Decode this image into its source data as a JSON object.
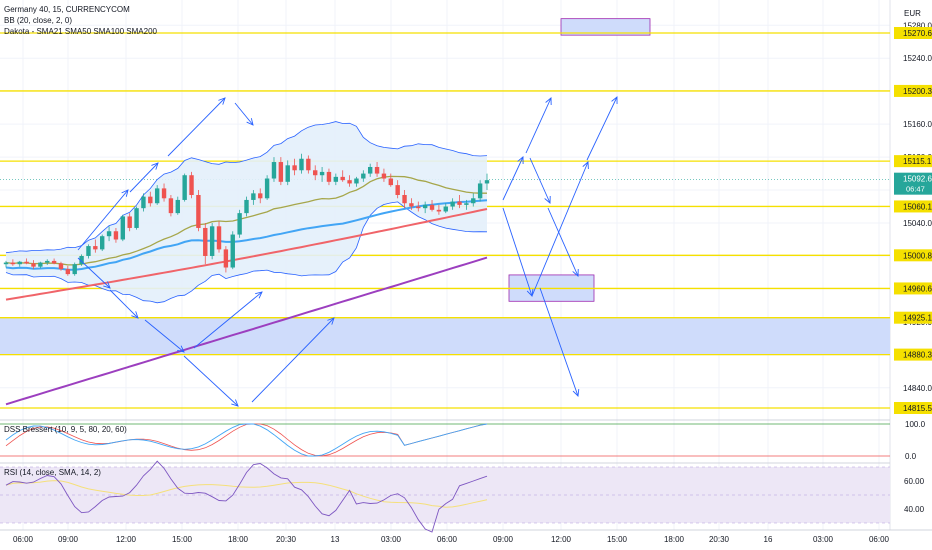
{
  "header": {
    "symbol_line": "Germany 40, 15, CURRENCYCOM",
    "bb_line": "BB (20, close, 2, 0)",
    "sma_line": "Dakota - SMA21 SMA50 SMA100 SMA200",
    "currency": "EUR"
  },
  "colors": {
    "candle_up": "#26a69a",
    "candle_down": "#ef5350",
    "level_line": "#f5e000",
    "zone_fill": "#cfdcfb",
    "zone_border": "#9c27b0",
    "arrow": "#2962ff",
    "sma21": "#a6a64a",
    "sma50": "#42a5f5",
    "sma100": "#f06469",
    "sma200": "#9c3fbf",
    "bb": "#2962ff",
    "bb_fill": "#e3f0fb",
    "price_tag": "#26a69a",
    "dss_blue": "#42a5f5",
    "dss_red": "#ef5350",
    "rsi_line": "#7e57c2",
    "rsi_ma": "#f5e07a",
    "rsi_band": "#ede7f6"
  },
  "chart_data": {
    "type": "candlestick",
    "y_range": [
      14800,
      15290
    ],
    "y_ticks": [
      "15280.0",
      "15240.0",
      "15200.0",
      "15160.0",
      "15120.0",
      "15080.0",
      "15040.0",
      "15000.0",
      "14960.0",
      "14920.0",
      "14880.0",
      "14840.0"
    ],
    "level_lines": [
      {
        "value": 15270.6,
        "label": "15270.6"
      },
      {
        "value": 15200.3,
        "label": "15200.3"
      },
      {
        "value": 15115.1,
        "label": "15115.1"
      },
      {
        "value": 15060.1,
        "label": "15060.1"
      },
      {
        "value": 15000.8,
        "label": "15000.8"
      },
      {
        "value": 14960.6,
        "label": "14960.6"
      },
      {
        "value": 14925.1,
        "label": "14925.1"
      },
      {
        "value": 14880.3,
        "label": "14880.3"
      },
      {
        "value": 14815.5,
        "label": "14815.5"
      }
    ],
    "current_price": {
      "value": 15092.6,
      "label": "15092.6",
      "countdown": "06:47"
    },
    "x_ticks": [
      "06:00",
      "09:00",
      "12:00",
      "15:00",
      "18:00",
      "20:30",
      "13",
      "03:00",
      "06:00",
      "09:00",
      "12:00",
      "15:00",
      "18:00",
      "20:30",
      "16",
      "03:00",
      "06:00"
    ],
    "candles": [
      [
        14990,
        14994,
        14986,
        14992
      ],
      [
        14992,
        14996,
        14988,
        14990
      ],
      [
        14990,
        14994,
        14987,
        14993
      ],
      [
        14993,
        14997,
        14990,
        14991
      ],
      [
        14991,
        14995,
        14984,
        14987
      ],
      [
        14987,
        14993,
        14985,
        14992
      ],
      [
        14992,
        14996,
        14989,
        14994
      ],
      [
        14994,
        14997,
        14990,
        14991
      ],
      [
        14991,
        14993,
        14982,
        14984
      ],
      [
        14984,
        14988,
        14976,
        14978
      ],
      [
        14978,
        14992,
        14976,
        14990
      ],
      [
        14990,
        15002,
        14988,
        15000
      ],
      [
        15000,
        15014,
        14997,
        15012
      ],
      [
        15012,
        15020,
        15004,
        15008
      ],
      [
        15008,
        15026,
        15006,
        15024
      ],
      [
        15024,
        15036,
        15018,
        15030
      ],
      [
        15030,
        15034,
        15016,
        15020
      ],
      [
        15020,
        15050,
        15018,
        15048
      ],
      [
        15048,
        15052,
        15030,
        15034
      ],
      [
        15034,
        15060,
        15032,
        15058
      ],
      [
        15058,
        15076,
        15054,
        15072
      ],
      [
        15072,
        15078,
        15060,
        15064
      ],
      [
        15064,
        15086,
        15062,
        15082
      ],
      [
        15082,
        15088,
        15066,
        15070
      ],
      [
        15070,
        15074,
        15048,
        15052
      ],
      [
        15052,
        15072,
        15050,
        15068
      ],
      [
        15068,
        15100,
        15066,
        15098
      ],
      [
        15098,
        15102,
        15070,
        15074
      ],
      [
        15074,
        15080,
        15030,
        15034
      ],
      [
        15034,
        15040,
        14990,
        15000
      ],
      [
        15000,
        15040,
        14996,
        15036
      ],
      [
        15036,
        15042,
        15004,
        15008
      ],
      [
        15008,
        15012,
        14980,
        14986
      ],
      [
        14986,
        15030,
        14984,
        15026
      ],
      [
        15026,
        15056,
        15022,
        15052
      ],
      [
        15052,
        15072,
        15048,
        15068
      ],
      [
        15068,
        15080,
        15062,
        15076
      ],
      [
        15076,
        15082,
        15064,
        15070
      ],
      [
        15070,
        15098,
        15068,
        15094
      ],
      [
        15094,
        15120,
        15090,
        15114
      ],
      [
        15114,
        15120,
        15086,
        15090
      ],
      [
        15090,
        15116,
        15086,
        15110
      ],
      [
        15110,
        15118,
        15098,
        15104
      ],
      [
        15104,
        15124,
        15100,
        15118
      ],
      [
        15118,
        15122,
        15100,
        15104
      ],
      [
        15104,
        15110,
        15092,
        15098
      ],
      [
        15098,
        15108,
        15090,
        15102
      ],
      [
        15102,
        15106,
        15086,
        15090
      ],
      [
        15090,
        15100,
        15086,
        15096
      ],
      [
        15096,
        15104,
        15090,
        15092
      ],
      [
        15092,
        15098,
        15084,
        15088
      ],
      [
        15088,
        15096,
        15084,
        15094
      ],
      [
        15094,
        15104,
        15090,
        15100
      ],
      [
        15100,
        15112,
        15096,
        15108
      ],
      [
        15108,
        15114,
        15096,
        15100
      ],
      [
        15100,
        15106,
        15090,
        15094
      ],
      [
        15094,
        15100,
        15084,
        15086
      ],
      [
        15086,
        15092,
        15070,
        15074
      ],
      [
        15074,
        15080,
        15058,
        15064
      ],
      [
        15064,
        15070,
        15056,
        15060
      ],
      [
        15060,
        15066,
        15054,
        15058
      ],
      [
        15058,
        15066,
        15052,
        15062
      ],
      [
        15062,
        15068,
        15054,
        15056
      ],
      [
        15056,
        15062,
        15050,
        15054
      ],
      [
        15054,
        15064,
        15052,
        15060
      ],
      [
        15060,
        15070,
        15056,
        15066
      ],
      [
        15066,
        15074,
        15058,
        15062
      ],
      [
        15062,
        15068,
        15056,
        15064
      ],
      [
        15064,
        15076,
        15060,
        15070
      ],
      [
        15070,
        15092,
        15066,
        15088
      ],
      [
        15088,
        15100,
        15080,
        15092
      ]
    ],
    "dss_ticks": [
      "100.0",
      "0.0"
    ],
    "rsi_ticks": [
      "60.00",
      "40.00"
    ]
  },
  "indicators": {
    "dss_label": "DSS Bressert (10, 9, 5, 80, 20, 60)",
    "rsi_label": "RSI (14, close, SMA, 14, 2)"
  }
}
